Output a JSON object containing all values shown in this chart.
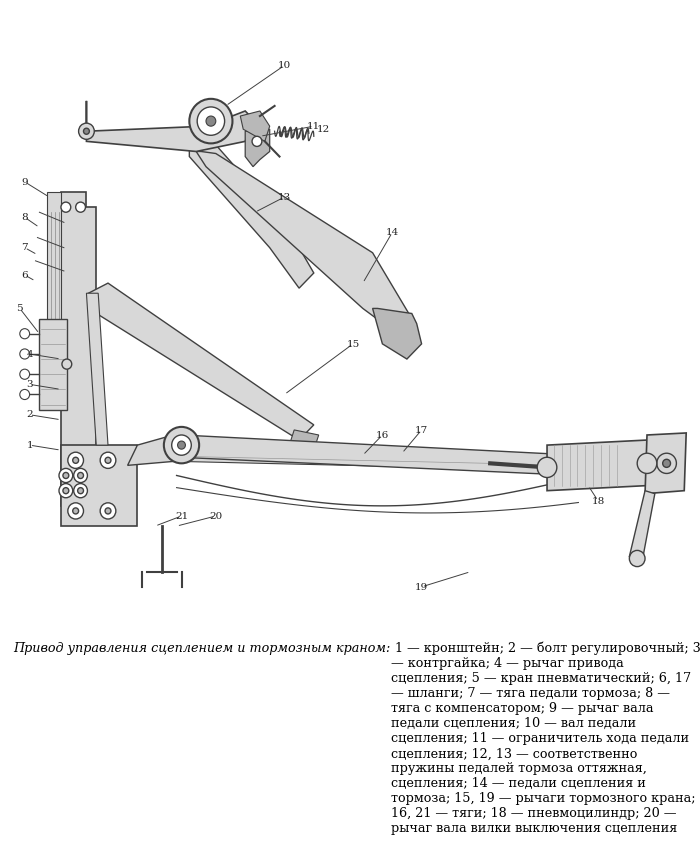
{
  "figure_width": 6.92,
  "figure_height": 8.37,
  "dpi": 100,
  "bg": "#ffffff",
  "lc": "#404040",
  "lc2": "#555555",
  "fill_light": "#d8d8d8",
  "fill_mid": "#b8b8b8",
  "fill_dark": "#888888",
  "caption_italic": "Привод управления сцеплением и тормозным краном:",
  "caption_rest": " 1 — кронштейн; 2 — болт регулировочный; 3 — контргайка; 4 — рычаг привода сцепления; 5 — кран пневматический; 6, 17 — шланги; 7 — тяга педали тормоза; 8 — тяга с компенсатором; 9 — рычаг вала педали сцепления; 10 — вал педали сцепления; 11 — ограничитель хода педали сцепления; 12, 13 — соответственно пружины педалей тормоза оттяжная, сцепления; 14 — педали сцепления и тормоза; 15, 19 — рычаги тормозного крана; 16, 21 — тяги; 18 — пневмоцилиндр; 20 — рычаг вала вилки выключения сцепления",
  "caption_fontsize": 9.2,
  "number_fontsize": 7.5,
  "label_color": "#222222"
}
